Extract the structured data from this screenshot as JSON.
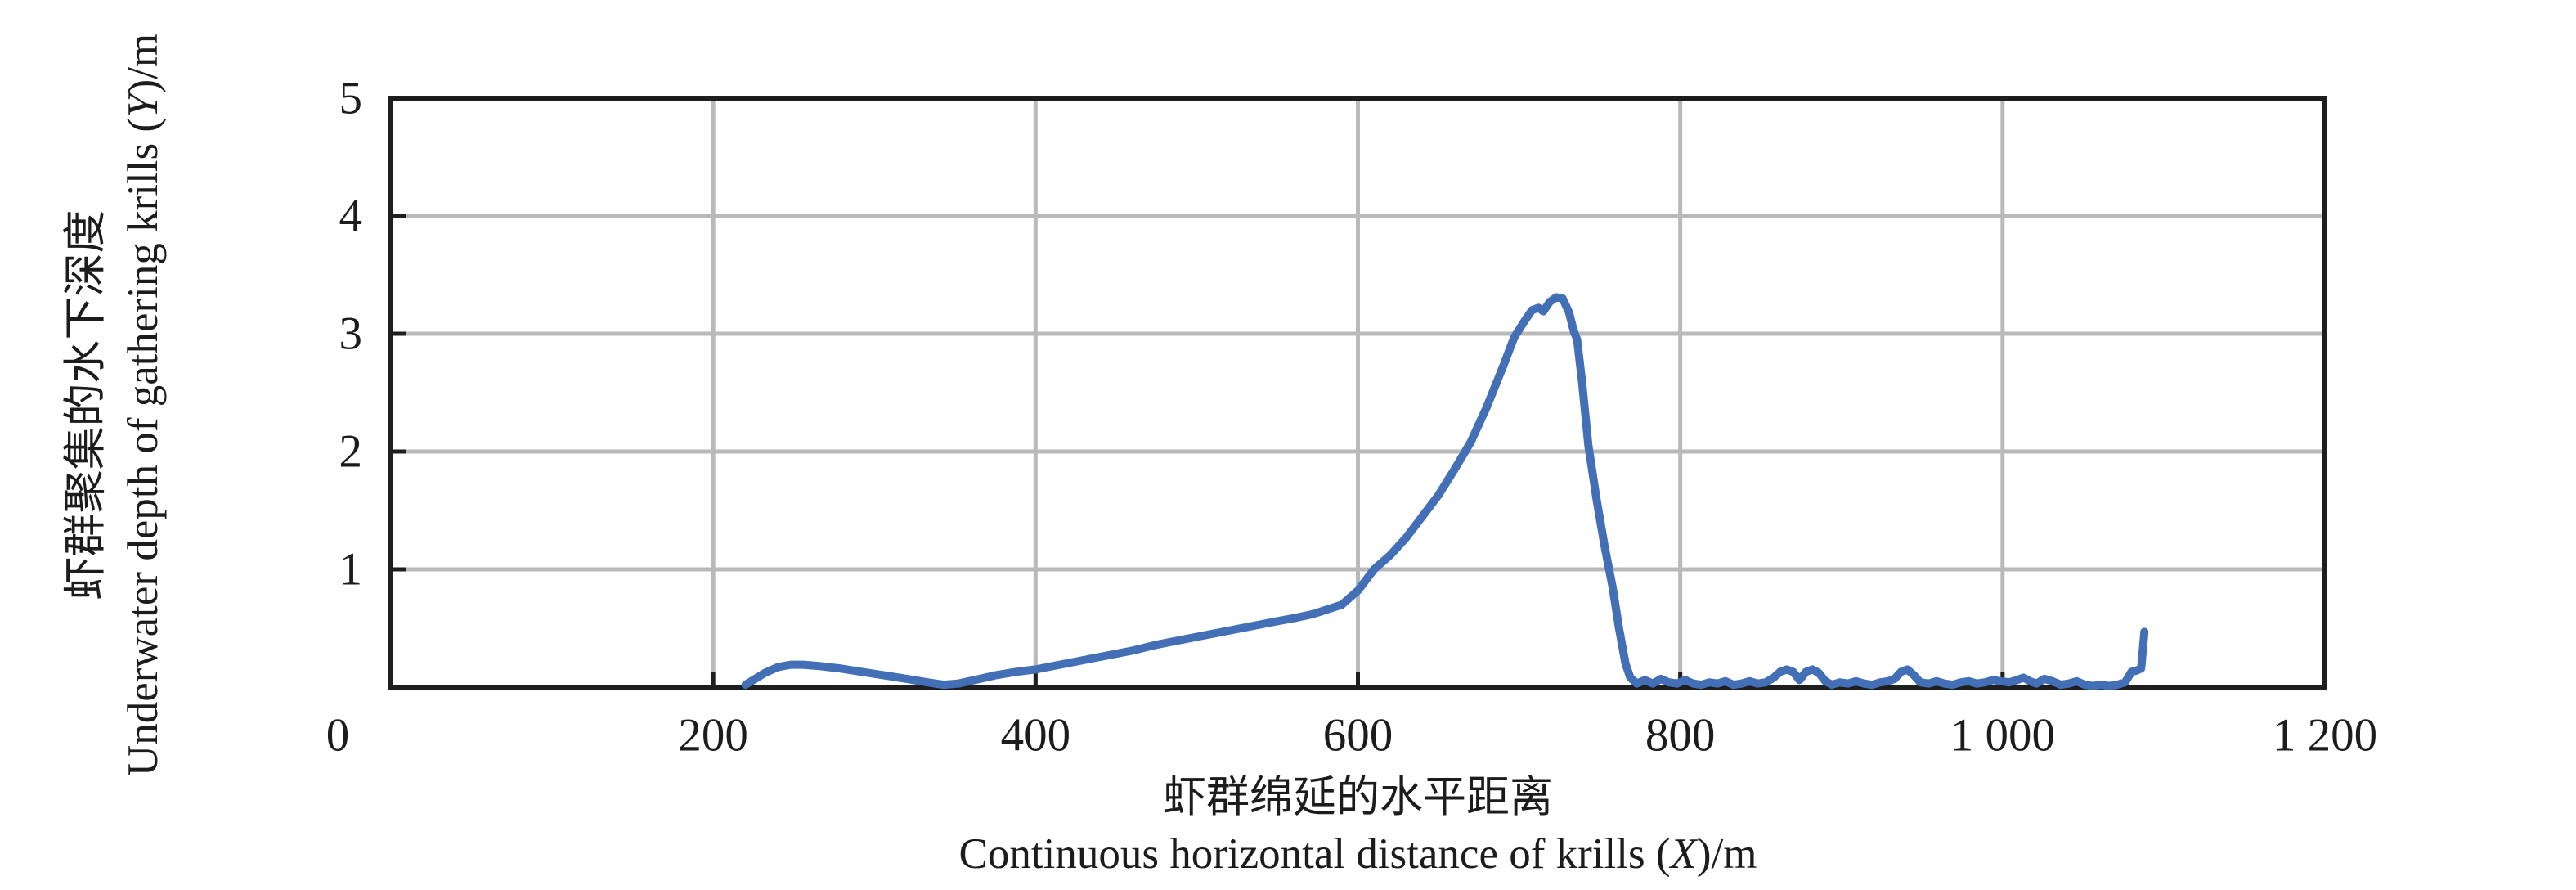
{
  "colors": {
    "line": "#426fb5",
    "grid": "#b9b9b9",
    "axis": "#1e1e1e",
    "text": "#1c1c1c",
    "background": "#ffffff"
  },
  "chart_data": {
    "type": "line",
    "grid": true,
    "legend": "none",
    "origin_label": "0",
    "x_axis": {
      "label_zh": "虾群绵延的水平距离",
      "label_en_prefix": "Continuous horizontal distance of krills (",
      "label_en_var": "X",
      "label_en_suffix": ")/m",
      "lim": [
        0,
        1200
      ],
      "ticks": [
        200,
        400,
        600,
        800,
        1000,
        1200
      ],
      "tick_labels": [
        "200",
        "400",
        "600",
        "800",
        "1 000",
        "1 200"
      ]
    },
    "y_axis": {
      "label_zh": "虾群聚集的水下深度",
      "label_en_prefix": "Underwater depth of gathering krills (",
      "label_en_var": "Y",
      "label_en_suffix": ")/m",
      "lim": [
        0,
        5
      ],
      "ticks": [
        1,
        2,
        3,
        4,
        5
      ],
      "tick_labels": [
        "1",
        "2",
        "3",
        "4",
        "5"
      ]
    },
    "series": [
      {
        "points": [
          [
            220,
            0.02
          ],
          [
            226,
            0.07
          ],
          [
            232,
            0.12
          ],
          [
            240,
            0.17
          ],
          [
            248,
            0.19
          ],
          [
            256,
            0.19
          ],
          [
            265,
            0.18
          ],
          [
            278,
            0.16
          ],
          [
            292,
            0.13
          ],
          [
            306,
            0.1
          ],
          [
            320,
            0.07
          ],
          [
            333,
            0.04
          ],
          [
            343,
            0.02
          ],
          [
            352,
            0.03
          ],
          [
            362,
            0.06
          ],
          [
            375,
            0.1
          ],
          [
            388,
            0.13
          ],
          [
            400,
            0.15
          ],
          [
            415,
            0.19
          ],
          [
            430,
            0.23
          ],
          [
            445,
            0.27
          ],
          [
            460,
            0.31
          ],
          [
            475,
            0.36
          ],
          [
            490,
            0.4
          ],
          [
            505,
            0.44
          ],
          [
            520,
            0.48
          ],
          [
            535,
            0.52
          ],
          [
            550,
            0.56
          ],
          [
            562,
            0.59
          ],
          [
            572,
            0.62
          ],
          [
            581,
            0.66
          ],
          [
            590,
            0.7
          ],
          [
            600,
            0.82
          ],
          [
            610,
            1.0
          ],
          [
            620,
            1.12
          ],
          [
            630,
            1.27
          ],
          [
            640,
            1.45
          ],
          [
            650,
            1.63
          ],
          [
            660,
            1.85
          ],
          [
            670,
            2.08
          ],
          [
            680,
            2.38
          ],
          [
            690,
            2.72
          ],
          [
            697,
            2.97
          ],
          [
            703,
            3.1
          ],
          [
            708,
            3.2
          ],
          [
            712,
            3.22
          ],
          [
            715,
            3.19
          ],
          [
            719,
            3.27
          ],
          [
            723,
            3.31
          ],
          [
            727,
            3.3
          ],
          [
            731,
            3.18
          ],
          [
            734,
            3.02
          ],
          [
            736,
            2.95
          ],
          [
            739,
            2.6
          ],
          [
            743,
            2.05
          ],
          [
            748,
            1.6
          ],
          [
            753,
            1.2
          ],
          [
            758,
            0.85
          ],
          [
            762,
            0.5
          ],
          [
            766,
            0.2
          ],
          [
            769,
            0.08
          ],
          [
            773,
            0.03
          ],
          [
            778,
            0.06
          ],
          [
            783,
            0.03
          ],
          [
            788,
            0.07
          ],
          [
            793,
            0.04
          ],
          [
            798,
            0.03
          ],
          [
            803,
            0.06
          ],
          [
            808,
            0.03
          ],
          [
            813,
            0.02
          ],
          [
            818,
            0.04
          ],
          [
            823,
            0.03
          ],
          [
            828,
            0.05
          ],
          [
            833,
            0.02
          ],
          [
            838,
            0.03
          ],
          [
            843,
            0.05
          ],
          [
            848,
            0.03
          ],
          [
            853,
            0.04
          ],
          [
            858,
            0.08
          ],
          [
            862,
            0.13
          ],
          [
            866,
            0.15
          ],
          [
            870,
            0.13
          ],
          [
            874,
            0.06
          ],
          [
            878,
            0.13
          ],
          [
            882,
            0.15
          ],
          [
            886,
            0.12
          ],
          [
            890,
            0.05
          ],
          [
            894,
            0.02
          ],
          [
            899,
            0.04
          ],
          [
            904,
            0.03
          ],
          [
            909,
            0.05
          ],
          [
            914,
            0.03
          ],
          [
            919,
            0.02
          ],
          [
            924,
            0.04
          ],
          [
            929,
            0.05
          ],
          [
            933,
            0.07
          ],
          [
            937,
            0.13
          ],
          [
            941,
            0.15
          ],
          [
            945,
            0.1
          ],
          [
            949,
            0.04
          ],
          [
            954,
            0.03
          ],
          [
            959,
            0.05
          ],
          [
            964,
            0.03
          ],
          [
            969,
            0.02
          ],
          [
            974,
            0.04
          ],
          [
            979,
            0.05
          ],
          [
            984,
            0.03
          ],
          [
            989,
            0.04
          ],
          [
            994,
            0.06
          ],
          [
            999,
            0.05
          ],
          [
            1004,
            0.04
          ],
          [
            1009,
            0.06
          ],
          [
            1013,
            0.08
          ],
          [
            1017,
            0.05
          ],
          [
            1021,
            0.03
          ],
          [
            1026,
            0.07
          ],
          [
            1031,
            0.05
          ],
          [
            1036,
            0.02
          ],
          [
            1041,
            0.03
          ],
          [
            1046,
            0.05
          ],
          [
            1051,
            0.02
          ],
          [
            1056,
            0.01
          ],
          [
            1061,
            0.02
          ],
          [
            1066,
            0.01
          ],
          [
            1071,
            0.02
          ],
          [
            1076,
            0.04
          ],
          [
            1080,
            0.13
          ],
          [
            1083,
            0.14
          ],
          [
            1086,
            0.16
          ],
          [
            1088,
            0.47
          ]
        ]
      }
    ]
  }
}
